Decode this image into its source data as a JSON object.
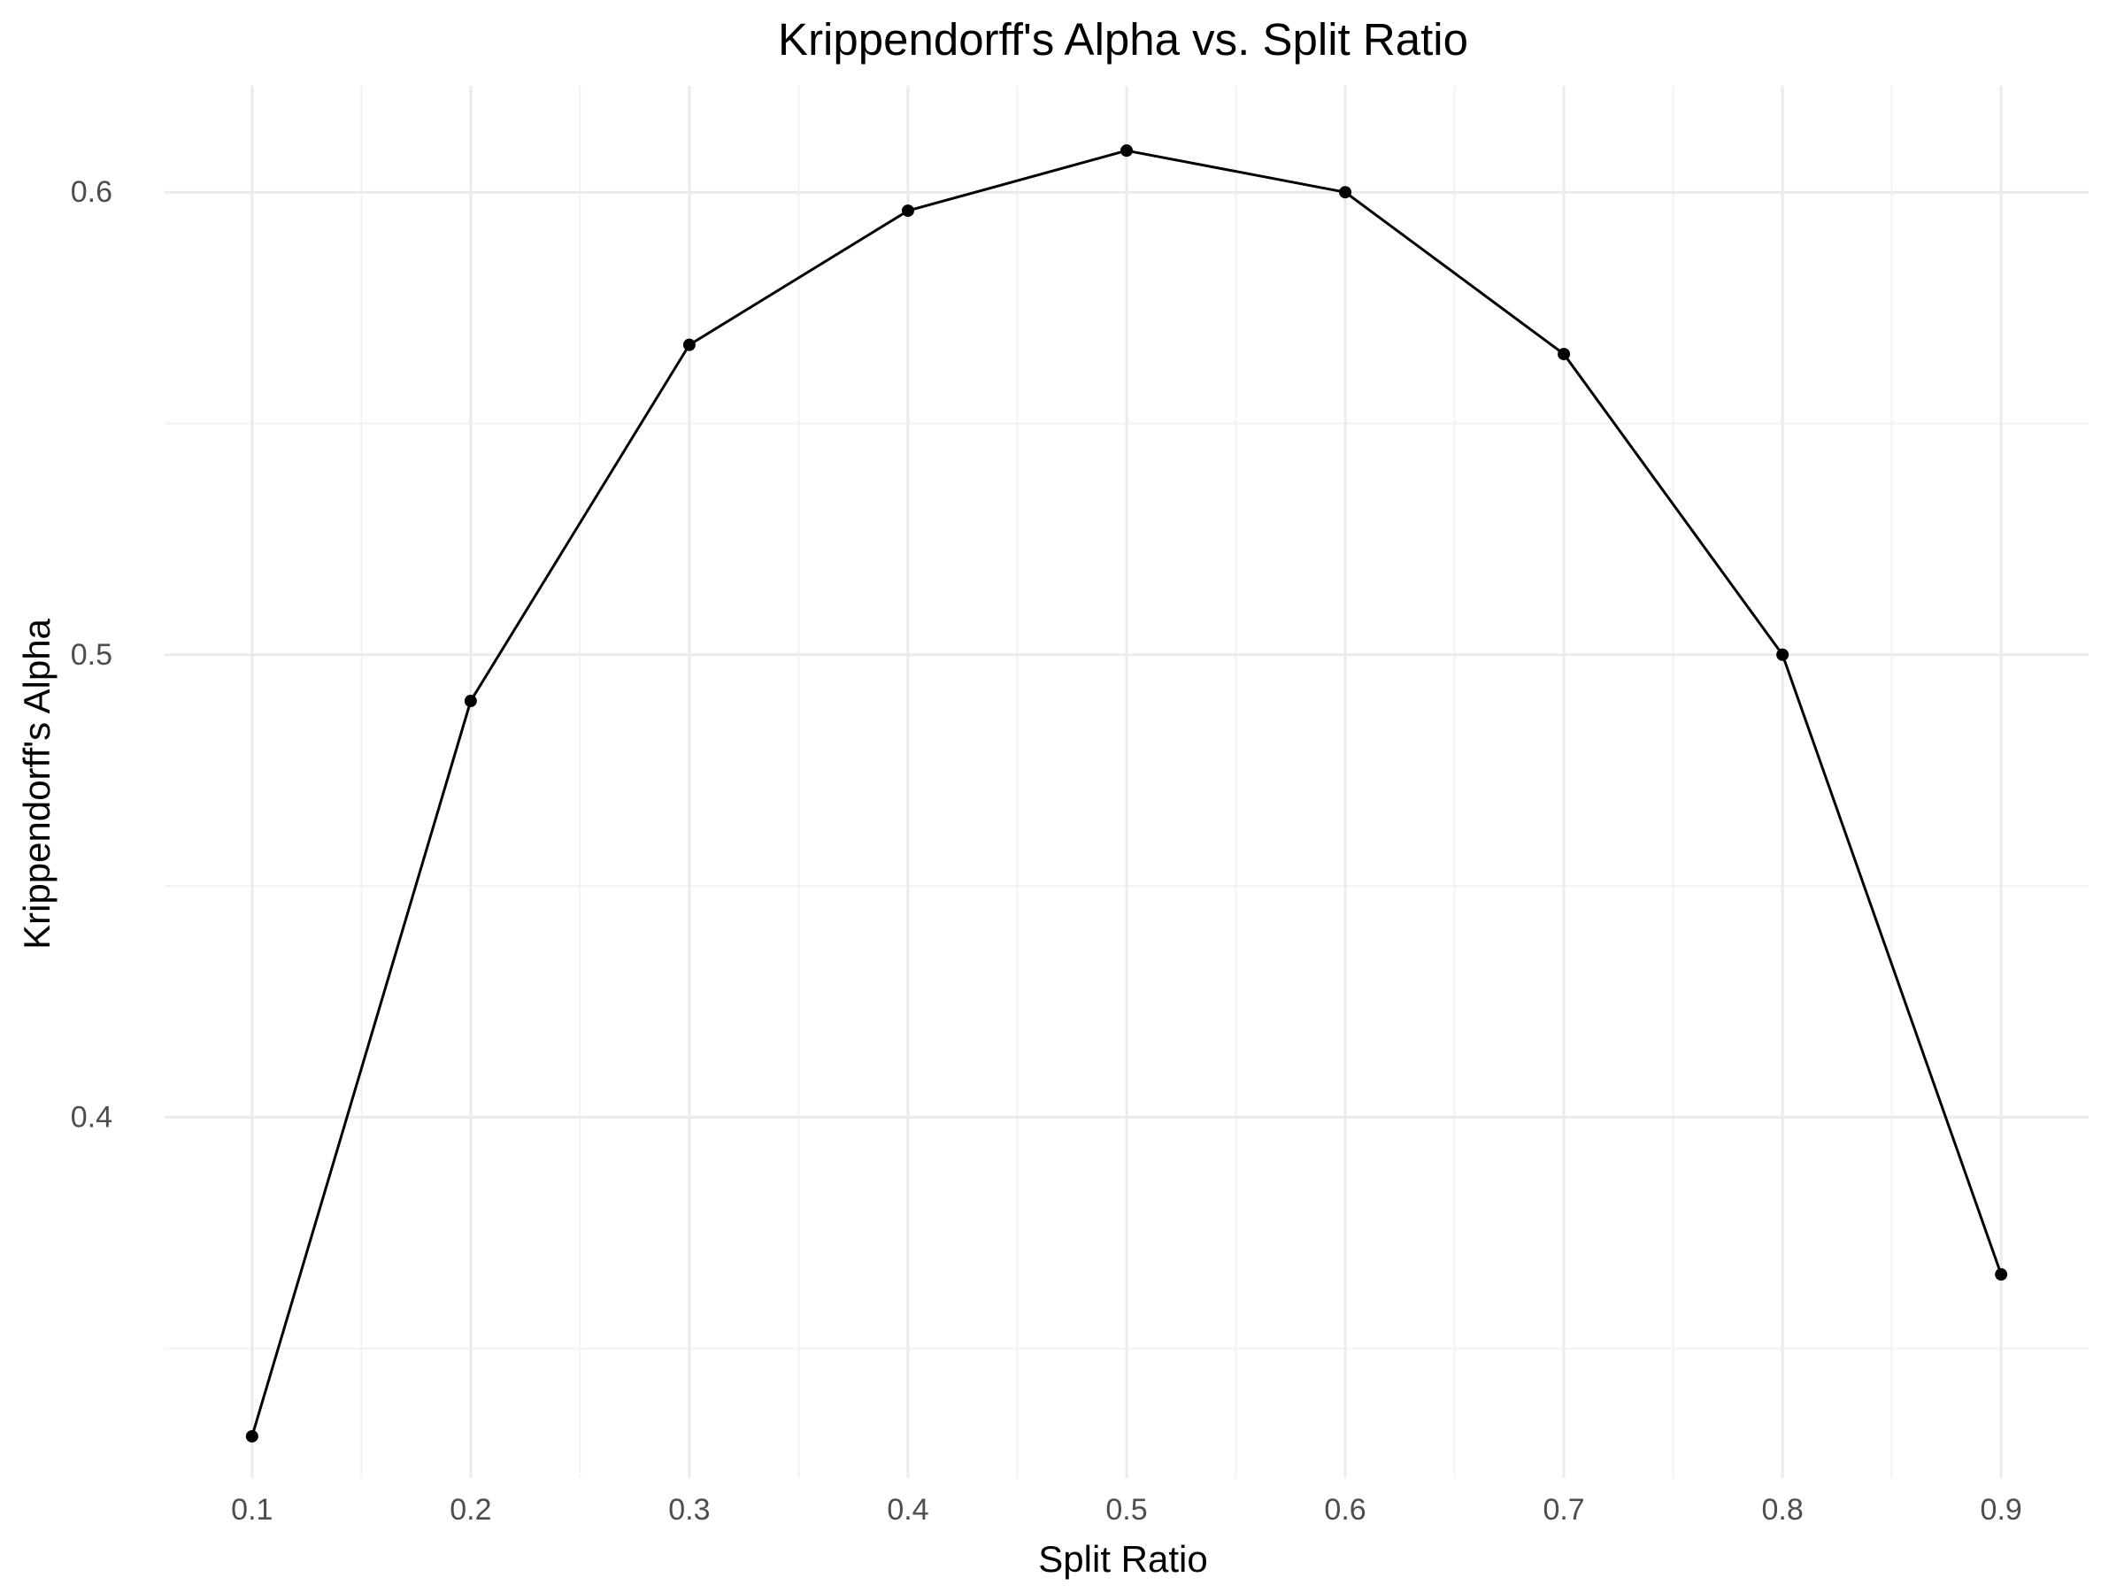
{
  "chart_data": {
    "type": "line",
    "title": "Krippendorff's Alpha vs. Split Ratio",
    "xlabel": "Split Ratio",
    "ylabel": "Krippendorff's Alpha",
    "x": [
      0.1,
      0.2,
      0.3,
      0.4,
      0.5,
      0.6,
      0.7,
      0.8,
      0.9
    ],
    "series": [
      {
        "values": [
          0.331,
          0.49,
          0.567,
          0.596,
          0.609,
          0.6,
          0.565,
          0.5,
          0.366
        ],
        "color": "#000000"
      }
    ],
    "xlim": [
      0.06,
      0.94
    ],
    "ylim": [
      0.322,
      0.623
    ],
    "x_ticks": [
      0.1,
      0.2,
      0.3,
      0.4,
      0.5,
      0.6,
      0.7,
      0.8,
      0.9
    ],
    "x_tick_labels": [
      "0.1",
      "0.2",
      "0.3",
      "0.4",
      "0.5",
      "0.6",
      "0.7",
      "0.8",
      "0.9"
    ],
    "y_ticks": [
      0.4,
      0.5,
      0.6
    ],
    "y_tick_labels": [
      "0.4",
      "0.5",
      "0.6"
    ],
    "x_minor_ticks": [
      0.15,
      0.25,
      0.35,
      0.45,
      0.55,
      0.65,
      0.75,
      0.85
    ],
    "y_minor_ticks": [
      0.35,
      0.45,
      0.55
    ],
    "grid": true,
    "legend": "none"
  }
}
